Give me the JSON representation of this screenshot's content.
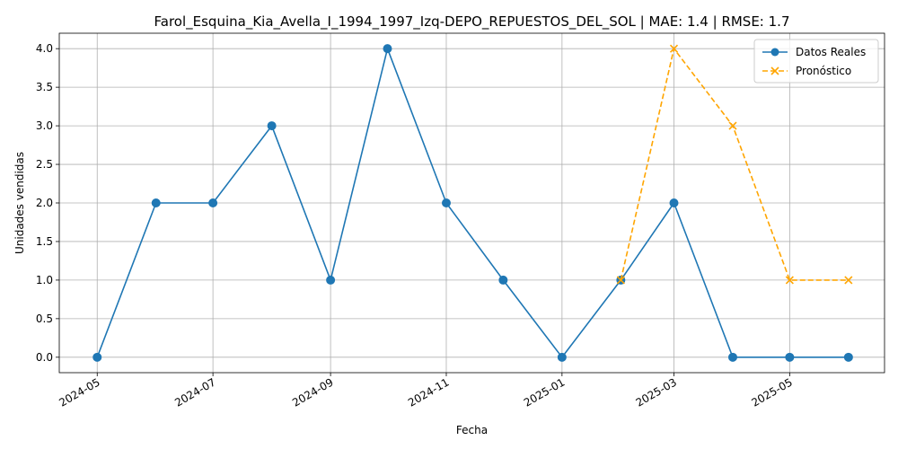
{
  "chart_data": {
    "type": "line",
    "title": "Farol_Esquina_Kia_Avella_I_1994_1997_Izq-DEPO_REPUESTOS_DEL_SOL | MAE: 1.4 | RMSE: 1.7",
    "xlabel": "Fecha",
    "ylabel": "Unidades vendidas",
    "x_tick_labels": [
      "2024-05",
      "2024-07",
      "2024-09",
      "2024-11",
      "2025-01",
      "2025-03",
      "2025-05"
    ],
    "y_tick_labels": [
      "0.0",
      "0.5",
      "1.0",
      "1.5",
      "2.0",
      "2.5",
      "3.0",
      "3.5",
      "4.0"
    ],
    "ylim": [
      -0.2,
      4.2
    ],
    "xlim": [
      "2024-04-11",
      "2025-06-20"
    ],
    "grid": true,
    "legend_position": "top-right",
    "series": [
      {
        "name": "Datos Reales",
        "color": "#1f77b4",
        "marker": "circle",
        "linestyle": "solid",
        "x": [
          "2024-05-01",
          "2024-06-01",
          "2024-07-01",
          "2024-08-01",
          "2024-09-01",
          "2024-10-01",
          "2024-11-01",
          "2024-12-01",
          "2025-01-01",
          "2025-02-01",
          "2025-03-01",
          "2025-04-01",
          "2025-05-01",
          "2025-06-01"
        ],
        "y": [
          0,
          2,
          2,
          3,
          1,
          4,
          2,
          1,
          0,
          1,
          2,
          0,
          0,
          0
        ]
      },
      {
        "name": "Pronóstico",
        "color": "#ffa500",
        "marker": "x",
        "linestyle": "dashed",
        "x": [
          "2025-02-01",
          "2025-03-01",
          "2025-04-01",
          "2025-05-01",
          "2025-06-01"
        ],
        "y": [
          1,
          4,
          3,
          1,
          1
        ]
      }
    ]
  }
}
